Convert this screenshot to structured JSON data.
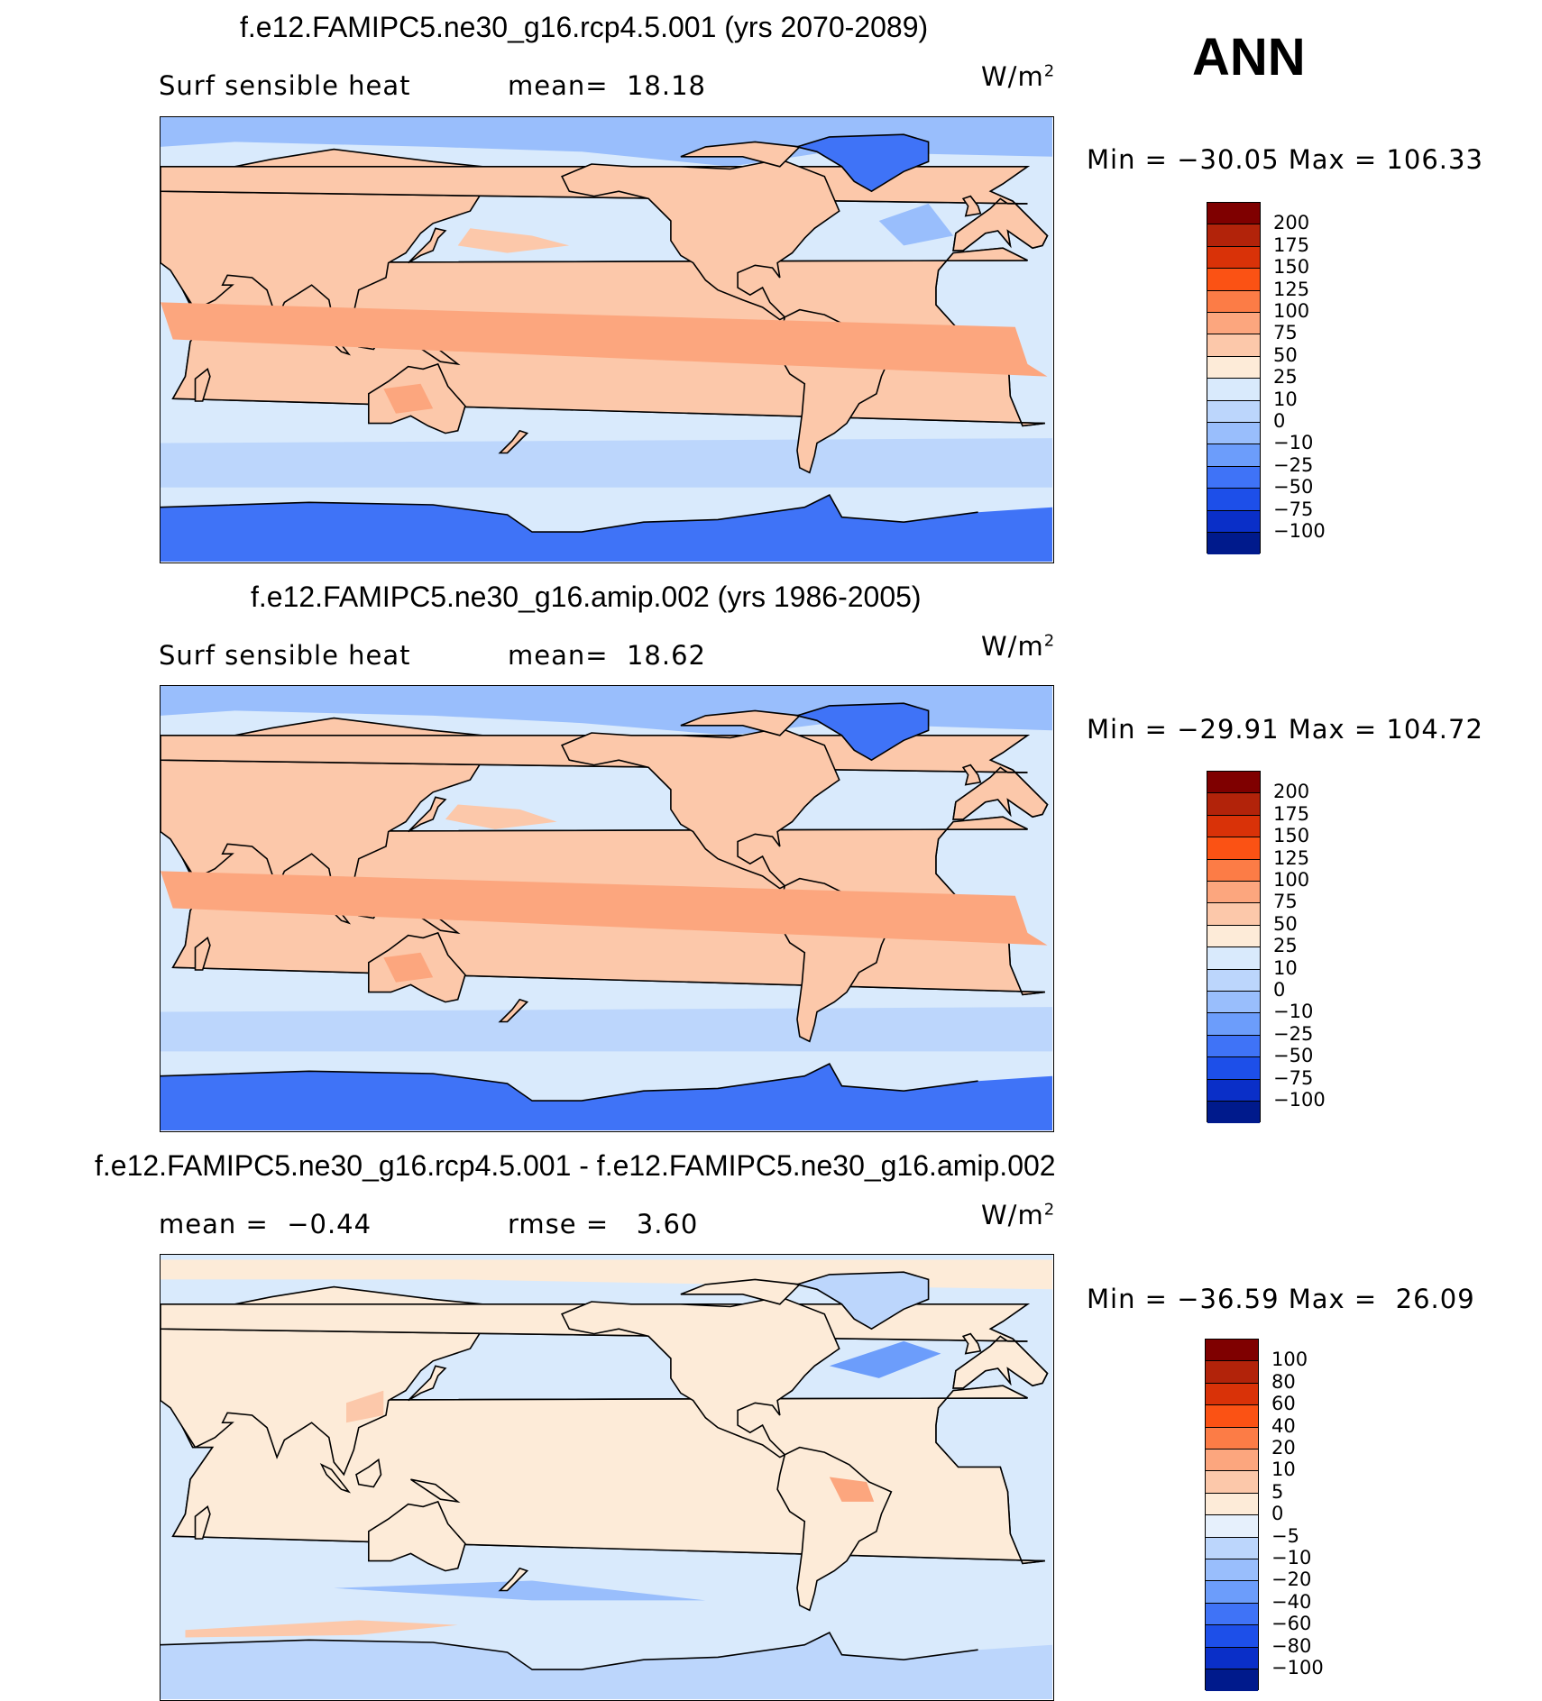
{
  "season_label": "ANN",
  "panels": [
    {
      "title": "f.e12.FAMIPC5.ne30_g16.rcp4.5.001 (yrs 2070-2089)",
      "left_text": "Surf sensible heat",
      "mid_text": "mean=  18.18",
      "unit_base": "W/m",
      "unit_exp": "2",
      "minmax": "Min = −30.05 Max = 106.33",
      "colorbar_labels": [
        "200",
        "175",
        "150",
        "125",
        "100",
        "75",
        "50",
        "25",
        "10",
        "0",
        "−10",
        "−25",
        "−50",
        "−75",
        "−100"
      ],
      "colorbar_colors": [
        "#7f0000",
        "#b2230a",
        "#d93208",
        "#fb5214",
        "#fc7c46",
        "#fca67e",
        "#fcc8aa",
        "#fdebd8",
        "#d9eafc",
        "#bcd6fc",
        "#99befc",
        "#6c9dfb",
        "#3f73f7",
        "#1d4fe9",
        "#0a2fc8",
        "#001a8c"
      ],
      "field": "future"
    },
    {
      "title": "f.e12.FAMIPC5.ne30_g16.amip.002 (yrs 1986-2005)",
      "left_text": "Surf sensible heat",
      "mid_text": "mean=  18.62",
      "unit_base": "W/m",
      "unit_exp": "2",
      "minmax": "Min = −29.91 Max = 104.72",
      "colorbar_labels": [
        "200",
        "175",
        "150",
        "125",
        "100",
        "75",
        "50",
        "25",
        "10",
        "0",
        "−10",
        "−25",
        "−50",
        "−75",
        "−100"
      ],
      "colorbar_colors": [
        "#7f0000",
        "#b2230a",
        "#d93208",
        "#fb5214",
        "#fc7c46",
        "#fca67e",
        "#fcc8aa",
        "#fdebd8",
        "#d9eafc",
        "#bcd6fc",
        "#99befc",
        "#6c9dfb",
        "#3f73f7",
        "#1d4fe9",
        "#0a2fc8",
        "#001a8c"
      ],
      "field": "present"
    },
    {
      "title": "f.e12.FAMIPC5.ne30_g16.rcp4.5.001 - f.e12.FAMIPC5.ne30_g16.amip.002",
      "left_text": "mean =  −0.44",
      "mid_text": "rmse =   3.60",
      "unit_base": "W/m",
      "unit_exp": "2",
      "minmax": "Min = −36.59 Max =  26.09",
      "colorbar_labels": [
        "100",
        "80",
        "60",
        "40",
        "20",
        "10",
        "5",
        "0",
        "−5",
        "−10",
        "−20",
        "−40",
        "−60",
        "−80",
        "−100"
      ],
      "colorbar_colors": [
        "#7f0000",
        "#b2230a",
        "#d93208",
        "#fb5214",
        "#fc7c46",
        "#fca67e",
        "#fcc8aa",
        "#fdebd8",
        "#e6f0fc",
        "#bcd6fc",
        "#99befc",
        "#6c9dfb",
        "#3f73f7",
        "#1d4fe9",
        "#0a2fc8",
        "#001a8c"
      ],
      "field": "diff"
    }
  ],
  "colors": {
    "ocean_light": "#d9eafc",
    "ocean_mid": "#bcd6fc",
    "ocean_blue": "#99befc",
    "ocean_deep": "#6c9dfb",
    "antarctic": "#3f73f7",
    "land_warm": "#fdebd8",
    "land_warmer": "#fcc8aa",
    "land_hot": "#fca67e",
    "coast": "#000000"
  }
}
